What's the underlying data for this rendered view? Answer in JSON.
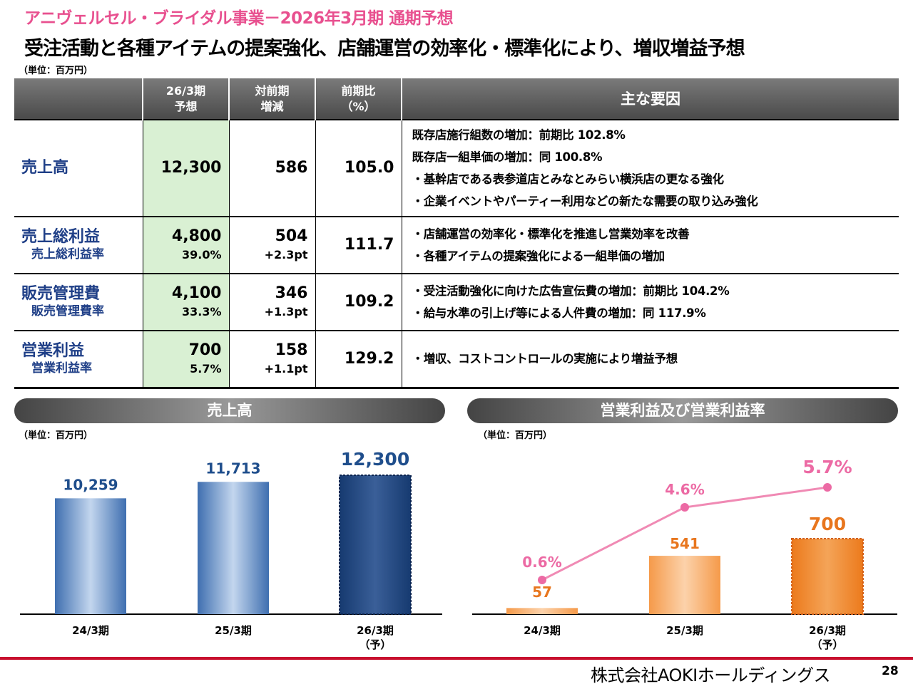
{
  "header": {
    "subtitle": "アニヴェルセル・ブライダル事業－2026年3月期 通期予想",
    "headline": "受注活動と各種アイテムの提案強化、店舗運営の効率化・標準化により、増収増益予想",
    "unit": "（単位：百万円）"
  },
  "table": {
    "columns": [
      "",
      "26/3期\n予想",
      "対前期\n増減",
      "前期比\n（%）",
      "主な要因"
    ],
    "rows": [
      {
        "name": "売上高",
        "sub_name": "",
        "forecast": "12,300",
        "forecast_sub": "",
        "change": "586",
        "change_sub": "",
        "ratio": "105.0",
        "reasons": [
          "既存店施行組数の増加：前期比 102.8%",
          "既存店一組単価の増加：同 100.8%",
          "・基幹店である表参道店とみなとみらい横浜店の更なる強化",
          "・企業イベントやパーティー利用などの新たな需要の取り込み強化"
        ]
      },
      {
        "name": "売上総利益",
        "sub_name": "売上総利益率",
        "forecast": "4,800",
        "forecast_sub": "39.0%",
        "change": "504",
        "change_sub": "+2.3pt",
        "ratio": "111.7",
        "reasons": [
          "・店舗運営の効率化・標準化を推進し営業効率を改善",
          "・各種アイテムの提案強化による一組単価の増加"
        ]
      },
      {
        "name": "販売管理費",
        "sub_name": "販売管理費率",
        "forecast": "4,100",
        "forecast_sub": "33.3%",
        "change": "346",
        "change_sub": "+1.3pt",
        "ratio": "109.2",
        "reasons": [
          "・受注活動強化に向けた広告宣伝費の増加：前期比 104.2%",
          "・給与水準の引上げ等による人件費の増加：同 117.9%"
        ]
      },
      {
        "name": "営業利益",
        "sub_name": "営業利益率",
        "forecast": "700",
        "forecast_sub": "5.7%",
        "change": "158",
        "change_sub": "+1.1pt",
        "ratio": "129.2",
        "reasons": [
          "・増収、コストコントロールの実施により増益予想"
        ]
      }
    ]
  },
  "charts": {
    "sales_title": "売上高",
    "op_title": "営業利益及び営業利益率",
    "unit": "（単位：百万円）"
  },
  "chart_data": [
    {
      "type": "bar",
      "title": "売上高",
      "categories": [
        "24/3期",
        "25/3期",
        "26/3期\n（予）"
      ],
      "values": [
        10259,
        11713,
        12300
      ],
      "labels": [
        "10,259",
        "11,713",
        "12,300"
      ],
      "forecast_index": 2,
      "colors": {
        "bar": "#3f6fb0",
        "forecast": "#163a70",
        "label": "#1f4e8c"
      }
    },
    {
      "type": "bar",
      "title": "営業利益及び営業利益率",
      "categories": [
        "24/3期",
        "25/3期",
        "26/3期\n（予）"
      ],
      "series": [
        {
          "values": [
            57,
            541,
            700
          ],
          "labels": [
            "57",
            "541",
            "700"
          ],
          "kind": "bar"
        },
        {
          "values": [
            0.6,
            4.6,
            5.7
          ],
          "labels": [
            "0.6%",
            "4.6%",
            "5.7%"
          ],
          "kind": "line"
        }
      ],
      "forecast_index": 2,
      "colors": {
        "bar": "#f59a4a",
        "forecast": "#ec7a1c",
        "label": "#e8761e",
        "line": "#f08ab4",
        "line_label": "#ec6aa4"
      }
    }
  ],
  "footer": {
    "company": "株式会社AOKIホールディングス",
    "page": "28"
  }
}
